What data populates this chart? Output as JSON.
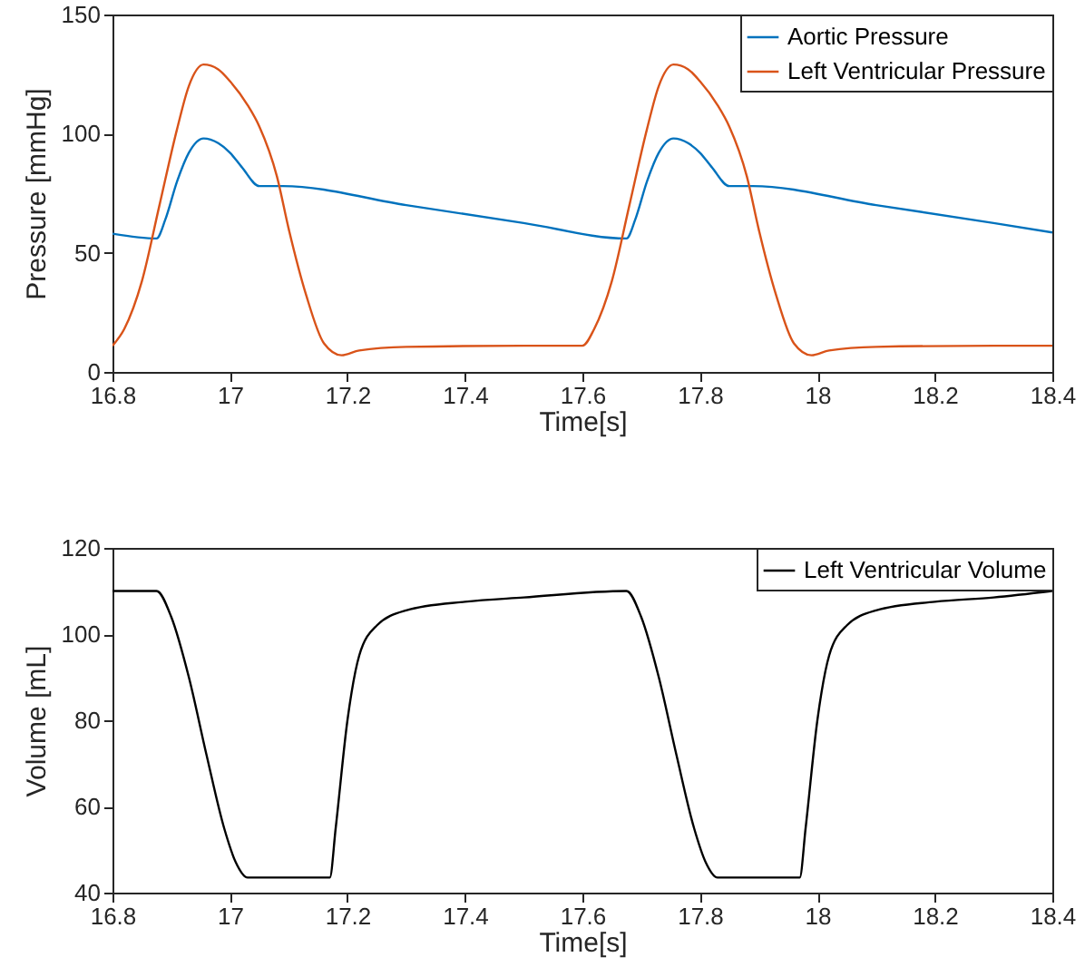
{
  "chart_data": [
    {
      "type": "line",
      "xlabel": "Time[s]",
      "ylabel": "Pressure [mmHg]",
      "xlim": [
        16.8,
        18.4
      ],
      "xticks": [
        16.8,
        17,
        17.2,
        17.4,
        17.6,
        17.8,
        18,
        18.2,
        18.4
      ],
      "ylim": [
        0,
        150
      ],
      "yticks": [
        0,
        50,
        100,
        150
      ],
      "legend": "top right",
      "grid": false,
      "series": [
        {
          "name": "Aortic Pressure",
          "color": "#0072bd",
          "x": [
            16.8,
            16.875,
            16.89,
            16.91,
            16.93,
            16.955,
            16.98,
            17.0,
            17.02,
            17.05,
            17.09,
            17.3,
            17.5,
            17.675,
            17.69,
            17.71,
            17.73,
            17.755,
            17.78,
            17.8,
            17.82,
            17.85,
            17.89,
            18.1,
            18.3,
            18.4
          ],
          "values": [
            58,
            56,
            64,
            80,
            92,
            98,
            96,
            92,
            86,
            78,
            78,
            70,
            62.5,
            56,
            64,
            80,
            92,
            98,
            96,
            92,
            86,
            78,
            78,
            70,
            62.5,
            58.5
          ]
        },
        {
          "name": "Left Ventricular Pressure",
          "color": "#d95319",
          "x": [
            16.8,
            16.82,
            16.85,
            16.88,
            16.91,
            16.93,
            16.955,
            16.98,
            17.0,
            17.03,
            17.05,
            17.08,
            17.1,
            17.13,
            17.16,
            17.19,
            17.22,
            17.3,
            17.5,
            17.6,
            17.62,
            17.65,
            17.68,
            17.71,
            17.73,
            17.755,
            17.78,
            17.8,
            17.83,
            17.85,
            17.88,
            17.9,
            17.93,
            17.96,
            17.99,
            18.02,
            18.1,
            18.3,
            18.4
          ],
          "values": [
            11,
            18,
            38,
            70,
            102,
            120,
            129,
            127,
            122,
            112,
            103,
            82,
            60,
            32,
            12,
            7,
            9,
            10.5,
            11,
            11,
            18,
            38,
            70,
            102,
            120,
            129,
            127,
            122,
            112,
            103,
            82,
            60,
            32,
            12,
            7,
            9,
            10.5,
            11,
            11
          ]
        }
      ]
    },
    {
      "type": "line",
      "xlabel": "Time[s]",
      "ylabel": "Volume [mL]",
      "xlim": [
        16.8,
        18.4
      ],
      "xticks": [
        16.8,
        17,
        17.2,
        17.4,
        17.6,
        17.8,
        18,
        18.2,
        18.4
      ],
      "ylim": [
        40,
        120
      ],
      "yticks": [
        40,
        60,
        80,
        100,
        120
      ],
      "legend": "top right",
      "grid": false,
      "series": [
        {
          "name": "Left Ventricular Volume",
          "color": "#000000",
          "x": [
            16.8,
            16.875,
            16.9,
            16.93,
            16.96,
            16.99,
            17.01,
            17.03,
            17.17,
            17.18,
            17.2,
            17.22,
            17.25,
            17.3,
            17.4,
            17.5,
            17.675,
            17.7,
            17.73,
            17.76,
            17.79,
            17.81,
            17.83,
            17.97,
            17.98,
            18.0,
            18.02,
            18.05,
            18.1,
            18.2,
            18.3,
            18.4
          ],
          "values": [
            110,
            110,
            104,
            90,
            72,
            55,
            47,
            43.5,
            43.5,
            55,
            80,
            95,
            102,
            105.5,
            107.5,
            108.5,
            110,
            104,
            90,
            72,
            55,
            47,
            43.5,
            43.5,
            55,
            80,
            95,
            102,
            105.5,
            107.5,
            108.5,
            110
          ]
        }
      ]
    }
  ]
}
